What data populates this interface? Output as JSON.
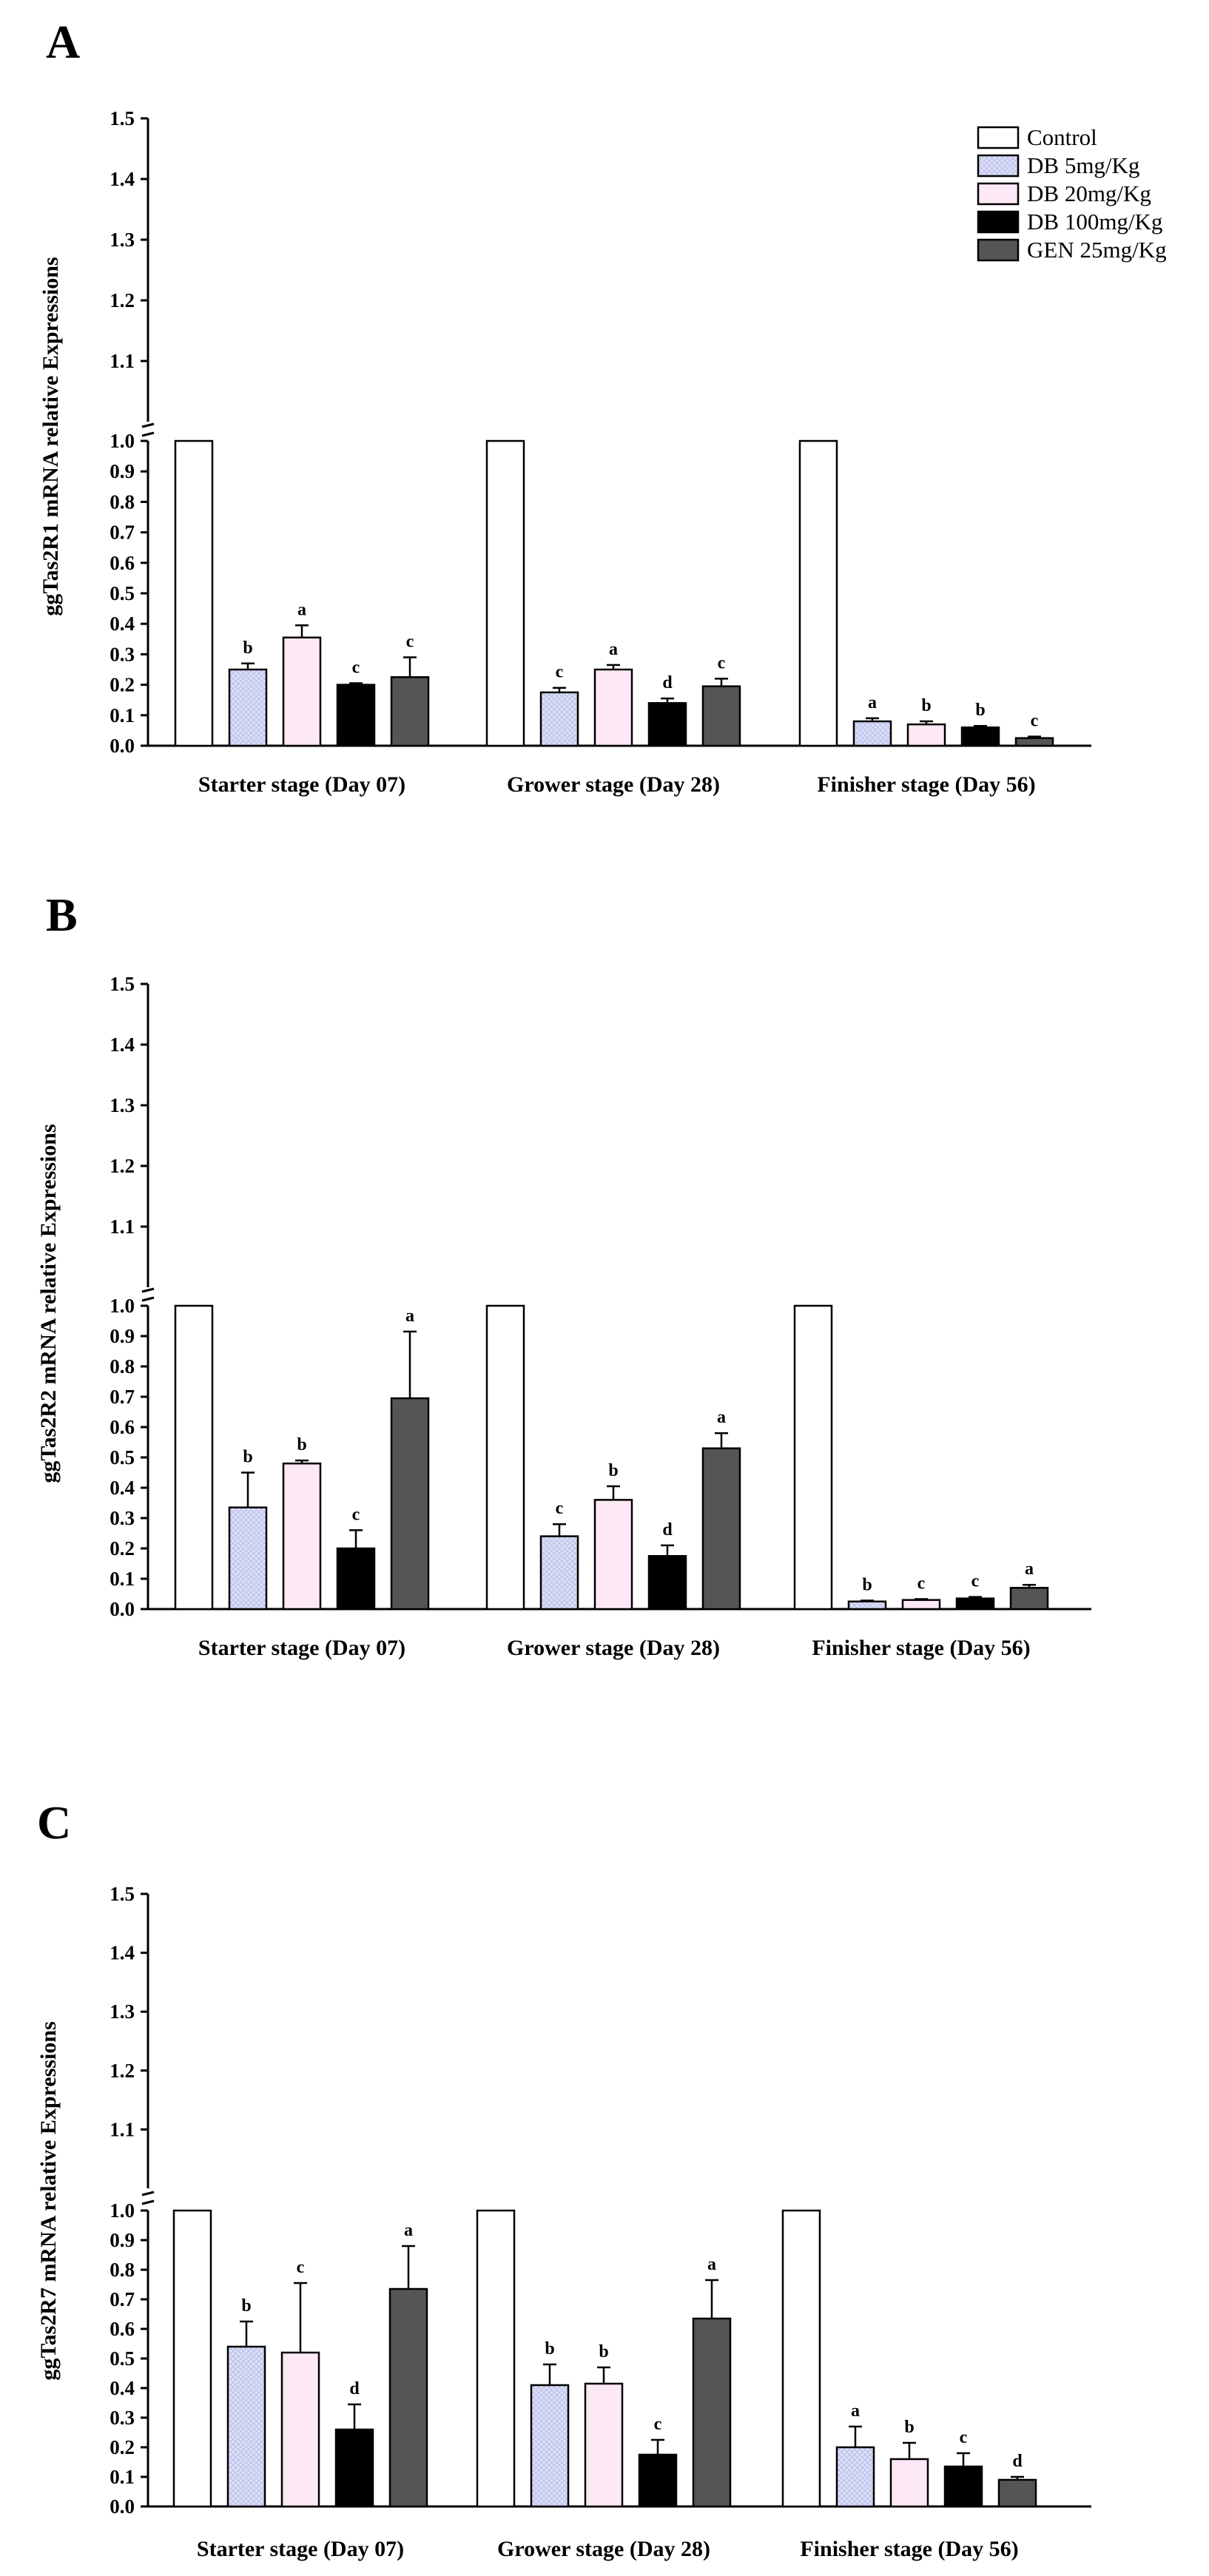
{
  "legend": [
    {
      "name": "Control",
      "color": "#ffffff",
      "pattern": "none"
    },
    {
      "name": "DB 5mg/Kg",
      "color": "#dcdff7",
      "pattern": "crosshatch"
    },
    {
      "name": "DB 20mg/Kg",
      "color": "#fde8f6",
      "pattern": "none"
    },
    {
      "name": "DB 100mg/Kg",
      "color": "#000000",
      "pattern": "none"
    },
    {
      "name": "GEN 25mg/Kg",
      "color": "#555555",
      "pattern": "none"
    }
  ],
  "chart_data": [
    {
      "panel": "A",
      "type": "bar",
      "ylabel": "ggTas2R1 mRNA relative Expressions",
      "categories": [
        "Starter stage (Day 07)",
        "Grower stage (Day 28)",
        "Finisher stage (Day 56)"
      ],
      "lower_ticks": [
        "0.0",
        "0.1",
        "0.2",
        "0.3",
        "0.4",
        "0.5",
        "0.6",
        "0.7",
        "0.8",
        "0.9",
        "1.0"
      ],
      "upper_ticks": [
        "1.1",
        "1.2",
        "1.3",
        "1.4",
        "1.5"
      ],
      "ylim": [
        0,
        1.5
      ],
      "axis_break": 1.0,
      "series": [
        {
          "name": "Control",
          "values": [
            1.0,
            1.0,
            1.0
          ],
          "errors": [
            0,
            0,
            0
          ],
          "letters": [
            "",
            "",
            ""
          ]
        },
        {
          "name": "DB 5mg/Kg",
          "values": [
            0.25,
            0.175,
            0.08
          ],
          "errors": [
            0.02,
            0.015,
            0.01
          ],
          "letters": [
            "b",
            "c",
            "a"
          ]
        },
        {
          "name": "DB 20mg/Kg",
          "values": [
            0.355,
            0.25,
            0.07
          ],
          "errors": [
            0.04,
            0.015,
            0.01
          ],
          "letters": [
            "a",
            "a",
            "b"
          ]
        },
        {
          "name": "DB 100mg/Kg",
          "values": [
            0.2,
            0.14,
            0.06
          ],
          "errors": [
            0.005,
            0.015,
            0.005
          ],
          "letters": [
            "c",
            "d",
            "b"
          ]
        },
        {
          "name": "GEN 25mg/Kg",
          "values": [
            0.225,
            0.195,
            0.025
          ],
          "errors": [
            0.065,
            0.025,
            0.005
          ],
          "letters": [
            "c",
            "c",
            "c"
          ]
        }
      ],
      "show_legend": true
    },
    {
      "panel": "B",
      "type": "bar",
      "ylabel": "ggTas2R2 mRNA relative Expressions",
      "categories": [
        "Starter stage (Day 07)",
        "Grower stage (Day 28)",
        "Finisher stage (Day 56)"
      ],
      "lower_ticks": [
        "0.0",
        "0.1",
        "0.2",
        "0.3",
        "0.4",
        "0.5",
        "0.6",
        "0.7",
        "0.8",
        "0.9",
        "1.0"
      ],
      "upper_ticks": [
        "1.1",
        "1.2",
        "1.3",
        "1.4",
        "1.5"
      ],
      "ylim": [
        0,
        1.5
      ],
      "axis_break": 1.0,
      "series": [
        {
          "name": "Control",
          "values": [
            1.0,
            1.0,
            1.0
          ],
          "errors": [
            0,
            0,
            0
          ],
          "letters": [
            "",
            "",
            ""
          ]
        },
        {
          "name": "DB 5mg/Kg",
          "values": [
            0.335,
            0.24,
            0.025
          ],
          "errors": [
            0.115,
            0.04,
            0.003
          ],
          "letters": [
            "b",
            "c",
            "b"
          ]
        },
        {
          "name": "DB 20mg/Kg",
          "values": [
            0.48,
            0.36,
            0.03
          ],
          "errors": [
            0.01,
            0.045,
            0.003
          ],
          "letters": [
            "b",
            "b",
            "c"
          ]
        },
        {
          "name": "DB 100mg/Kg",
          "values": [
            0.2,
            0.175,
            0.035
          ],
          "errors": [
            0.06,
            0.035,
            0.005
          ],
          "letters": [
            "c",
            "d",
            "c"
          ]
        },
        {
          "name": "GEN 25mg/Kg",
          "values": [
            0.695,
            0.53,
            0.07
          ],
          "errors": [
            0.22,
            0.05,
            0.01
          ],
          "letters": [
            "a",
            "a",
            "a"
          ]
        }
      ],
      "show_legend": false
    },
    {
      "panel": "C",
      "type": "bar",
      "ylabel": "ggTas2R7 mRNA relative Expressions",
      "categories": [
        "Starter stage (Day 07)",
        "Grower stage (Day 28)",
        "Finisher stage (Day 56)"
      ],
      "lower_ticks": [
        "0.0",
        "0.1",
        "0.2",
        "0.3",
        "0.4",
        "0.5",
        "0.6",
        "0.7",
        "0.8",
        "0.9",
        "1.0"
      ],
      "upper_ticks": [
        "1.1",
        "1.2",
        "1.3",
        "1.4",
        "1.5"
      ],
      "ylim": [
        0,
        1.5
      ],
      "axis_break": 1.0,
      "series": [
        {
          "name": "Control",
          "values": [
            1.0,
            1.0,
            1.0
          ],
          "errors": [
            0,
            0,
            0
          ],
          "letters": [
            "",
            "",
            ""
          ]
        },
        {
          "name": "DB 5mg/Kg",
          "values": [
            0.54,
            0.41,
            0.2
          ],
          "errors": [
            0.085,
            0.07,
            0.07
          ],
          "letters": [
            "b",
            "b",
            "a"
          ]
        },
        {
          "name": "DB 20mg/Kg",
          "values": [
            0.52,
            0.415,
            0.16
          ],
          "errors": [
            0.235,
            0.055,
            0.055
          ],
          "letters": [
            "c",
            "b",
            "b"
          ]
        },
        {
          "name": "DB 100mg/Kg",
          "values": [
            0.26,
            0.175,
            0.135
          ],
          "errors": [
            0.085,
            0.05,
            0.045
          ],
          "letters": [
            "d",
            "c",
            "c"
          ]
        },
        {
          "name": "GEN 25mg/Kg",
          "values": [
            0.735,
            0.635,
            0.09
          ],
          "errors": [
            0.145,
            0.13,
            0.01
          ],
          "letters": [
            "a",
            "a",
            "d"
          ]
        }
      ],
      "show_legend": false
    }
  ]
}
